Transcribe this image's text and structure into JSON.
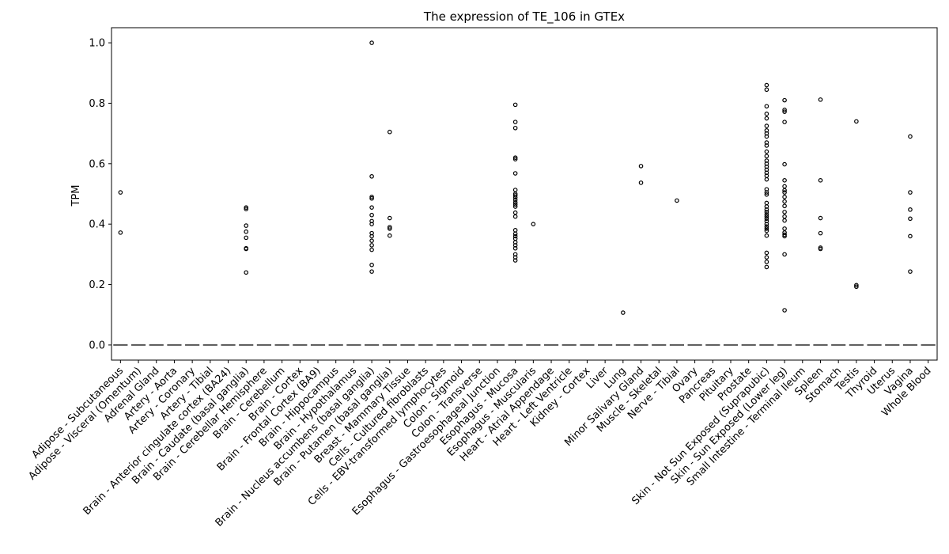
{
  "chart_data": {
    "type": "scatter",
    "title": "The expression of TE_106 in GTEx",
    "xlabel": "",
    "ylabel": "TPM",
    "ylim": [
      -0.05,
      1.05
    ],
    "yticks": [
      "0.0",
      "0.2",
      "0.4",
      "0.6",
      "0.8",
      "1.0"
    ],
    "grid": false,
    "categories": [
      "Adipose - Subcutaneous",
      "Adipose - Visceral (Omentum)",
      "Adrenal Gland",
      "Artery - Aorta",
      "Artery - Coronary",
      "Artery - Tibial",
      "Brain - Anterior cingulate cortex (BA24)",
      "Brain - Caudate (basal ganglia)",
      "Brain - Cerebellar Hemisphere",
      "Brain - Cerebellum",
      "Brain - Cortex",
      "Brain - Frontal Cortex (BA9)",
      "Brain - Hippocampus",
      "Brain - Hypothalamus",
      "Brain - Nucleus accumbens (basal ganglia)",
      "Brain - Putamen (basal ganglia)",
      "Breast - Mammary Tissue",
      "Cells - Cultured fibroblasts",
      "Cells - EBV-transformed lymphocytes",
      "Colon - Sigmoid",
      "Colon - Transverse",
      "Esophagus - Gastroesophageal Junction",
      "Esophagus - Mucosa",
      "Esophagus - Muscularis",
      "Heart - Atrial Appendage",
      "Heart - Left Ventricle",
      "Kidney - Cortex",
      "Liver",
      "Lung",
      "Minor Salivary Gland",
      "Muscle - Skeletal",
      "Nerve - Tibial",
      "Ovary",
      "Pancreas",
      "Pituitary",
      "Prostate",
      "Skin - Not Sun Exposed (Suprapubic)",
      "Skin - Sun Exposed (Lower leg)",
      "Small Intestine - Terminal Ileum",
      "Spleen",
      "Stomach",
      "Testis",
      "Thyroid",
      "Uterus",
      "Vagina",
      "Whole Blood"
    ],
    "median_values": [
      0,
      0,
      0,
      0,
      0,
      0,
      0,
      0,
      0,
      0,
      0,
      0,
      0,
      0,
      0,
      0,
      0,
      0,
      0,
      0,
      0,
      0,
      0,
      0,
      0,
      0,
      0,
      0,
      0,
      0,
      0,
      0,
      0,
      0,
      0,
      0,
      0,
      0,
      0,
      0,
      0,
      0,
      0,
      0,
      0,
      0
    ],
    "outliers": [
      [
        0.505,
        0.372
      ],
      [],
      [],
      [],
      [],
      [],
      [],
      [
        0.455,
        0.45,
        0.395,
        0.375,
        0.355,
        0.32,
        0.318,
        0.24
      ],
      [],
      [],
      [],
      [],
      [],
      [],
      [
        1.0,
        0.558,
        0.49,
        0.485,
        0.455,
        0.43,
        0.41,
        0.4,
        0.37,
        0.36,
        0.345,
        0.33,
        0.315,
        0.265,
        0.243
      ],
      [
        0.705,
        0.42,
        0.39,
        0.385,
        0.362
      ],
      [],
      [],
      [],
      [],
      [],
      [],
      [
        0.795,
        0.738,
        0.718,
        0.62,
        0.615,
        0.568,
        0.513,
        0.5,
        0.495,
        0.488,
        0.48,
        0.472,
        0.465,
        0.458,
        0.438,
        0.425,
        0.38,
        0.368,
        0.36,
        0.352,
        0.34,
        0.33,
        0.32,
        0.3,
        0.29,
        0.28
      ],
      [
        0.4
      ],
      [],
      [],
      [],
      [],
      [
        0.107
      ],
      [
        0.592,
        0.537
      ],
      [],
      [
        0.478
      ],
      [],
      [],
      [],
      [],
      [
        0.86,
        0.845,
        0.79,
        0.765,
        0.75,
        0.725,
        0.71,
        0.7,
        0.69,
        0.67,
        0.66,
        0.64,
        0.625,
        0.61,
        0.6,
        0.59,
        0.58,
        0.57,
        0.56,
        0.548,
        0.515,
        0.505,
        0.498,
        0.47,
        0.458,
        0.448,
        0.44,
        0.432,
        0.425,
        0.418,
        0.41,
        0.4,
        0.392,
        0.385,
        0.378,
        0.362,
        0.305,
        0.29,
        0.275,
        0.258
      ],
      [
        0.81,
        0.778,
        0.772,
        0.738,
        0.598,
        0.545,
        0.525,
        0.512,
        0.505,
        0.49,
        0.475,
        0.46,
        0.44,
        0.425,
        0.412,
        0.385,
        0.372,
        0.365,
        0.36,
        0.3,
        0.115
      ],
      [],
      [
        0.812,
        0.545,
        0.42,
        0.37,
        0.322,
        0.318
      ],
      [],
      [
        0.74,
        0.198,
        0.193
      ],
      [],
      [],
      [
        0.69,
        0.505,
        0.448,
        0.418,
        0.36,
        0.243
      ],
      []
    ]
  }
}
